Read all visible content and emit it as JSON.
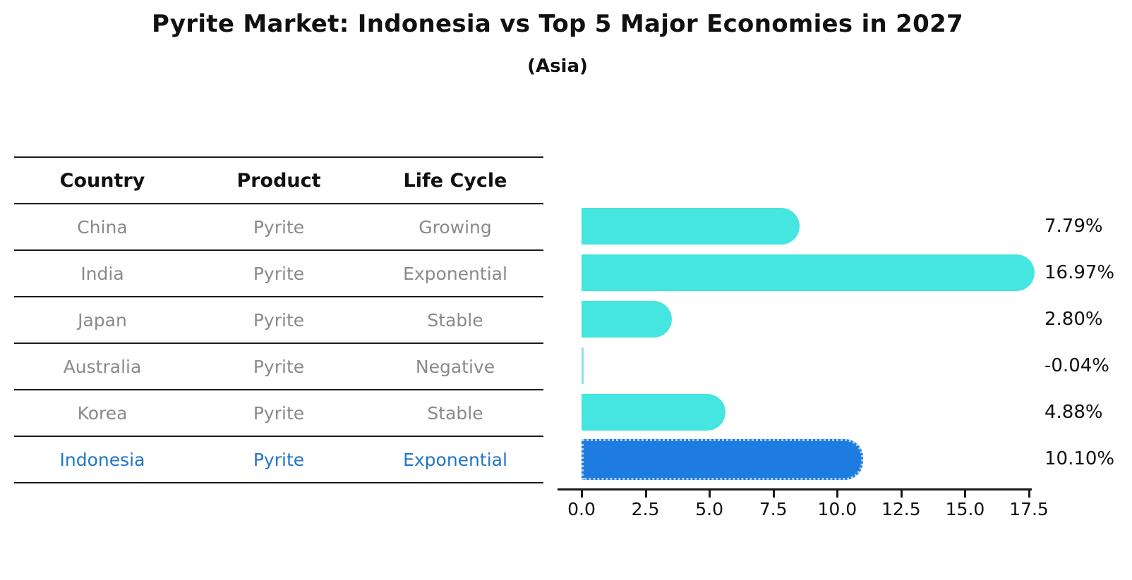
{
  "title": "Pyrite Market: Indonesia vs Top 5 Major Economies in 2027",
  "subtitle": "(Asia)",
  "table": {
    "headers": [
      "Country",
      "Product",
      "Life Cycle"
    ],
    "rows": [
      {
        "country": "China",
        "product": "Pyrite",
        "life_cycle": "Growing",
        "highlight": false
      },
      {
        "country": "India",
        "product": "Pyrite",
        "life_cycle": "Exponential",
        "highlight": false
      },
      {
        "country": "Japan",
        "product": "Pyrite",
        "life_cycle": "Stable",
        "highlight": false
      },
      {
        "country": "Australia",
        "product": "Pyrite",
        "life_cycle": "Negative",
        "highlight": false
      },
      {
        "country": "Korea",
        "product": "Pyrite",
        "life_cycle": "Stable",
        "highlight": false
      },
      {
        "country": "Indonesia",
        "product": "Pyrite",
        "life_cycle": "Exponential",
        "highlight": true
      }
    ]
  },
  "chart_data": {
    "type": "bar",
    "orientation": "horizontal",
    "title": "Pyrite Market: Indonesia vs Top 5 Major Economies in 2027",
    "subtitle": "(Asia)",
    "categories": [
      "China",
      "India",
      "Japan",
      "Australia",
      "Korea",
      "Indonesia"
    ],
    "values": [
      7.79,
      16.97,
      2.8,
      -0.04,
      4.88,
      10.1
    ],
    "value_labels": [
      "7.79%",
      "16.97%",
      "2.80%",
      "-0.04%",
      "4.88%",
      "10.10%"
    ],
    "x_ticks": [
      "0.0",
      "2.5",
      "5.0",
      "7.5",
      "10.0",
      "12.5",
      "15.0",
      "17.5"
    ],
    "xlim": [
      0,
      17.5
    ],
    "grid": false,
    "legend": false,
    "bar_color": "#45E6E0",
    "highlight_color": "#1E7BE0",
    "highlight_index": 5
  },
  "colors": {
    "highlight_text": "#2176C7",
    "table_text": "#8A8A8A",
    "axis_text": "#111111"
  }
}
